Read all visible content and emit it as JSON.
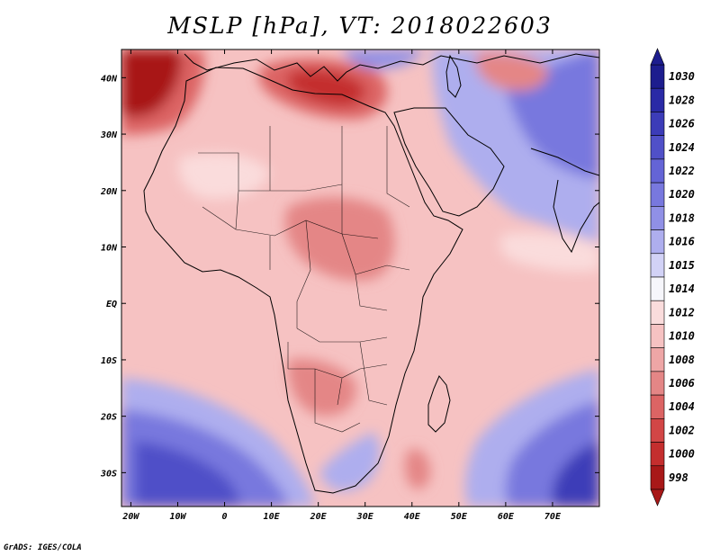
{
  "title": "MSLP [hPa], VT: 2018022603",
  "credit": "GrADS: IGES/COLA",
  "map": {
    "lon_range": [
      -22,
      80
    ],
    "lat_range": [
      -36,
      45
    ],
    "lon_ticks": [
      {
        "value": -20,
        "label": "20W"
      },
      {
        "value": -10,
        "label": "10W"
      },
      {
        "value": 0,
        "label": "0"
      },
      {
        "value": 10,
        "label": "10E"
      },
      {
        "value": 20,
        "label": "20E"
      },
      {
        "value": 30,
        "label": "30E"
      },
      {
        "value": 40,
        "label": "40E"
      },
      {
        "value": 50,
        "label": "50E"
      },
      {
        "value": 60,
        "label": "60E"
      },
      {
        "value": 70,
        "label": "70E"
      }
    ],
    "lat_ticks": [
      {
        "value": 40,
        "label": "40N"
      },
      {
        "value": 30,
        "label": "30N"
      },
      {
        "value": 20,
        "label": "20N"
      },
      {
        "value": 10,
        "label": "10N"
      },
      {
        "value": 0,
        "label": "EQ"
      },
      {
        "value": -10,
        "label": "10S"
      },
      {
        "value": -20,
        "label": "20S"
      },
      {
        "value": -30,
        "label": "30S"
      }
    ]
  },
  "colorbar": {
    "labels": [
      "1030",
      "1028",
      "1026",
      "1024",
      "1022",
      "1020",
      "1018",
      "1016",
      "1015",
      "1014",
      "1012",
      "1010",
      "1008",
      "1006",
      "1004",
      "1002",
      "1000",
      "998"
    ],
    "colors": [
      "#1d1d8e",
      "#2a2aa6",
      "#3c3cb8",
      "#5050c8",
      "#6464d6",
      "#7878de",
      "#9090e6",
      "#aeaeee",
      "#d2d2f6",
      "#f6f6fb",
      "#fadcdc",
      "#f6c2c2",
      "#eea6a6",
      "#e48686",
      "#dc6464",
      "#d24646",
      "#c42e2e",
      "#a81818"
    ]
  },
  "regions": [
    {
      "name": "low-nw-atlantic",
      "color": "#a81818"
    },
    {
      "name": "low-mediterranean",
      "color": "#c42e2e"
    },
    {
      "name": "low-sahara",
      "color": "#e48686"
    },
    {
      "name": "high-south-atlantic",
      "color": "#6464d6"
    },
    {
      "name": "high-south-indian",
      "color": "#5050c8"
    },
    {
      "name": "high-asia",
      "color": "#7878de"
    }
  ]
}
